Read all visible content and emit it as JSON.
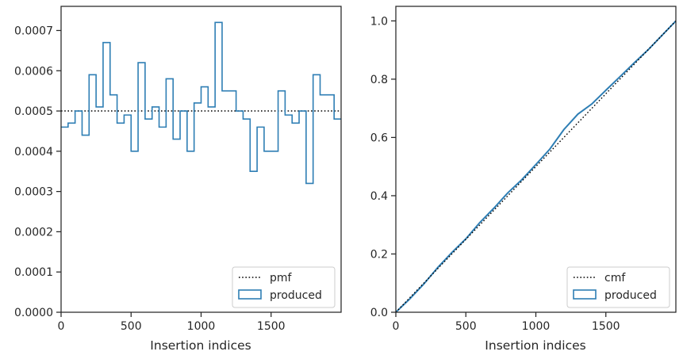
{
  "colors": {
    "produced": "#2e7eb4",
    "reference": "#000000",
    "axes": "#262626"
  },
  "chart_data": [
    {
      "type": "step",
      "xlabel": "Insertion indices",
      "ylabel": "",
      "xlim": [
        0,
        2000
      ],
      "ylim": [
        0,
        0.00076
      ],
      "xticks": [
        0,
        500,
        1000,
        1500
      ],
      "xtick_labels": [
        "0",
        "500",
        "1000",
        "1500"
      ],
      "yticks": [
        0,
        0.0001,
        0.0002,
        0.0003,
        0.0004,
        0.0005,
        0.0006,
        0.0007
      ],
      "ytick_labels": [
        "0.0000",
        "0.0001",
        "0.0002",
        "0.0003",
        "0.0004",
        "0.0005",
        "0.0006",
        "0.0007"
      ],
      "legend_position": "lower right",
      "reference": {
        "name": "pmf",
        "style": "dotted",
        "value": 0.0005
      },
      "series": [
        {
          "name": "produced",
          "bin_width": 50,
          "values": [
            0.00046,
            0.00047,
            0.0005,
            0.00044,
            0.00059,
            0.00051,
            0.00067,
            0.00054,
            0.00047,
            0.00049,
            0.0004,
            0.00062,
            0.00048,
            0.00051,
            0.00046,
            0.00058,
            0.00043,
            0.0005,
            0.0004,
            0.00052,
            0.00056,
            0.00051,
            0.00072,
            0.00055,
            0.00055,
            0.0005,
            0.00048,
            0.00035,
            0.00046,
            0.0004,
            0.0004,
            0.00055,
            0.00049,
            0.00047,
            0.0005,
            0.00032,
            0.00059,
            0.00054,
            0.00054,
            0.00048
          ]
        }
      ]
    },
    {
      "type": "step",
      "xlabel": "Insertion indices",
      "ylabel": "",
      "xlim": [
        0,
        2000
      ],
      "ylim": [
        0,
        1.05
      ],
      "xticks": [
        0,
        500,
        1000,
        1500
      ],
      "xtick_labels": [
        "0",
        "500",
        "1000",
        "1500"
      ],
      "yticks": [
        0,
        0.2,
        0.4,
        0.6,
        0.8,
        1.0
      ],
      "ytick_labels": [
        "0.0",
        "0.2",
        "0.4",
        "0.6",
        "0.8",
        "1.0"
      ],
      "legend_position": "lower right",
      "reference": {
        "name": "cmf",
        "style": "dotted",
        "x": [
          0,
          2000
        ],
        "y": [
          0,
          1.0
        ]
      },
      "series": [
        {
          "name": "produced",
          "x": [
            0,
            100,
            200,
            300,
            400,
            500,
            600,
            700,
            800,
            900,
            1000,
            1100,
            1200,
            1300,
            1400,
            1500,
            1600,
            1700,
            1800,
            1900,
            2000
          ],
          "y": [
            0,
            0.046,
            0.097,
            0.154,
            0.205,
            0.252,
            0.308,
            0.357,
            0.41,
            0.455,
            0.507,
            0.56,
            0.627,
            0.68,
            0.715,
            0.762,
            0.808,
            0.855,
            0.9,
            0.95,
            1.0
          ]
        }
      ]
    }
  ]
}
